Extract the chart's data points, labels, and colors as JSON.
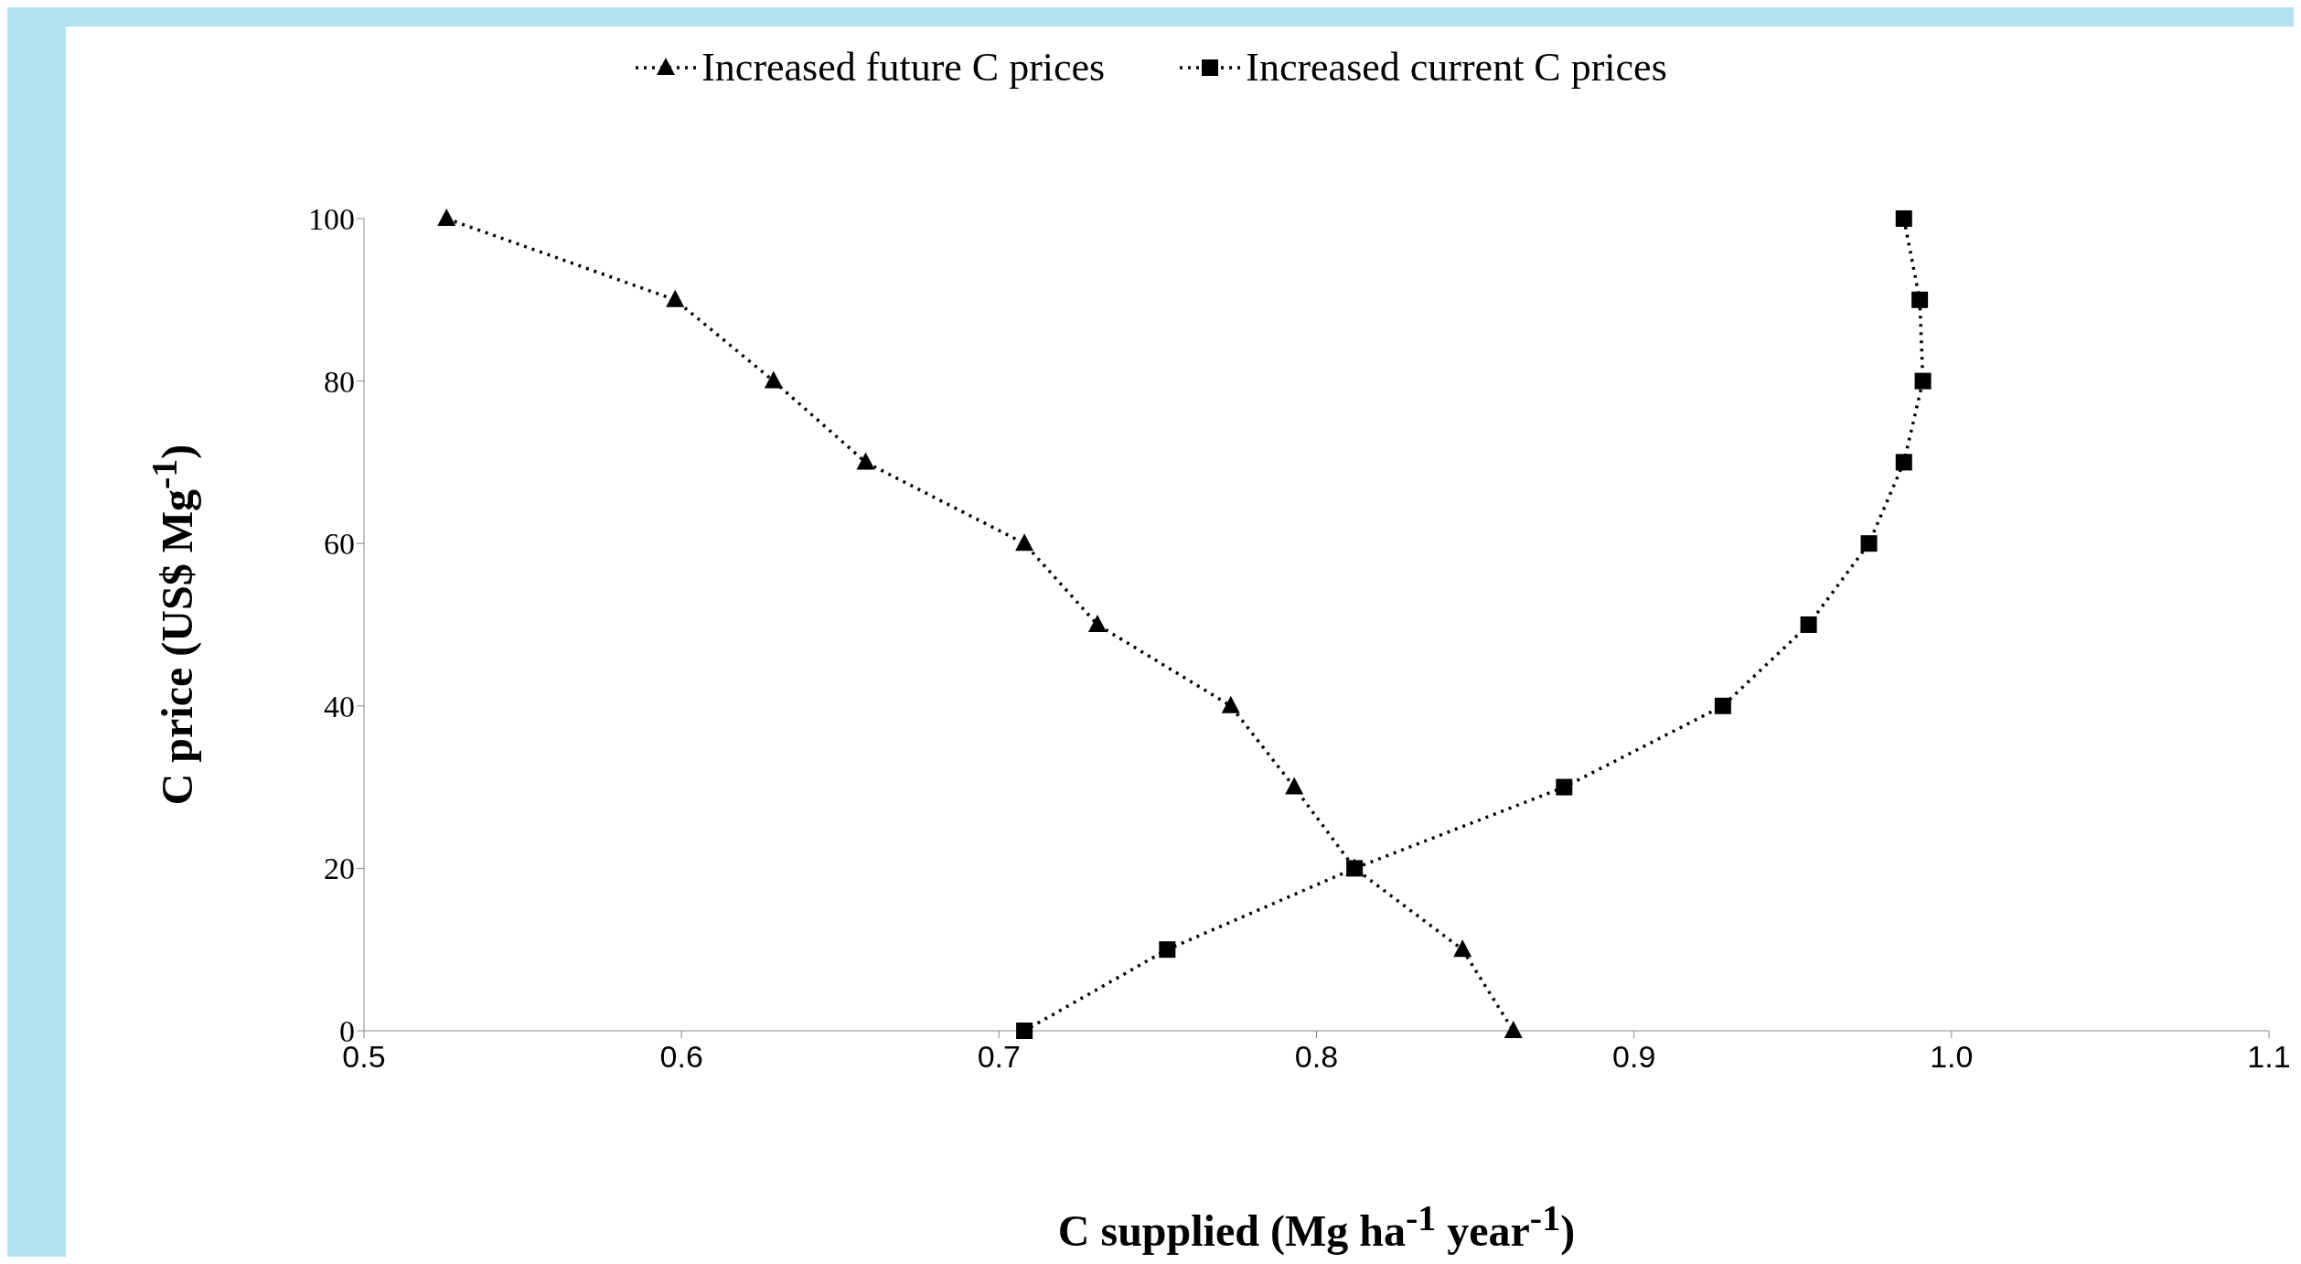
{
  "chart_data": {
    "type": "line",
    "xlabel": "C supplied (Mg ha$^{-1}$ year$^{-1}$)",
    "ylabel": "C price (US$ Mg$^{-1}$)",
    "xlim": [
      0.5,
      1.1
    ],
    "xticks": [
      0.5,
      0.6,
      0.7,
      0.8,
      0.9,
      {
        "value": 1,
        "label": "1.0"
      },
      1.1
    ],
    "ylim": [
      0,
      100
    ],
    "yticks": [
      0,
      20,
      40,
      60,
      80,
      100
    ],
    "grid": false,
    "legend": "top",
    "line_style": "dotted",
    "series": [
      {
        "name": "Increased future C prices",
        "color": "#000000",
        "marker": "triangle",
        "x": [
          0.526,
          0.598,
          0.629,
          0.658,
          0.708,
          0.731,
          0.773,
          0.793,
          0.812,
          0.846,
          0.862
        ],
        "values": [
          100,
          90,
          80,
          70,
          60,
          50,
          40,
          30,
          20,
          10,
          0
        ]
      },
      {
        "name": "Increased current C prices",
        "color": "#000000",
        "marker": "square",
        "x": [
          0.985,
          0.99,
          0.991,
          0.985,
          0.974,
          0.955,
          0.928,
          0.878,
          0.812,
          0.753,
          0.708
        ],
        "values": [
          100,
          90,
          80,
          70,
          60,
          50,
          40,
          30,
          20,
          10,
          0
        ]
      }
    ]
  }
}
